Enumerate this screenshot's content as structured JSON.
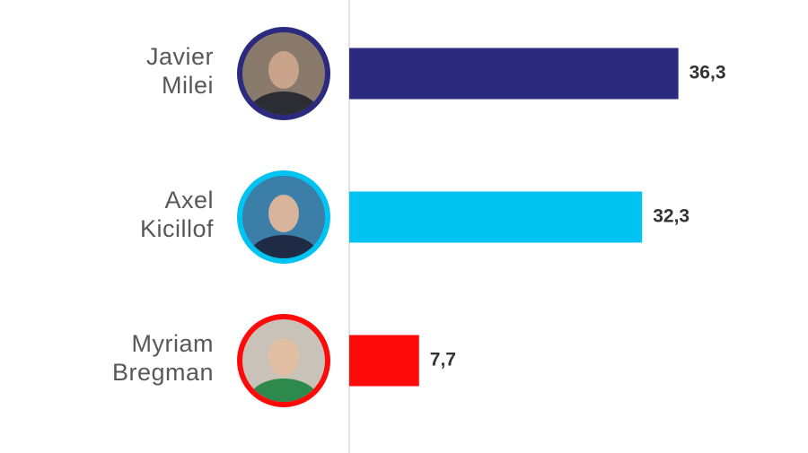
{
  "chart_data": {
    "type": "bar",
    "orientation": "horizontal",
    "categories": [
      [
        "Javier",
        "Milei"
      ],
      [
        "Axel",
        "Kicillof"
      ],
      [
        "Myriam",
        "Bregman"
      ]
    ],
    "series": [
      {
        "colors": [
          "#2b2a7e",
          "#00c3f2",
          "#ff0a0a"
        ],
        "values": [
          36.3,
          32.3,
          7.7
        ],
        "value_labels": [
          "36,3",
          "32,3",
          "7,7"
        ]
      }
    ]
  }
}
